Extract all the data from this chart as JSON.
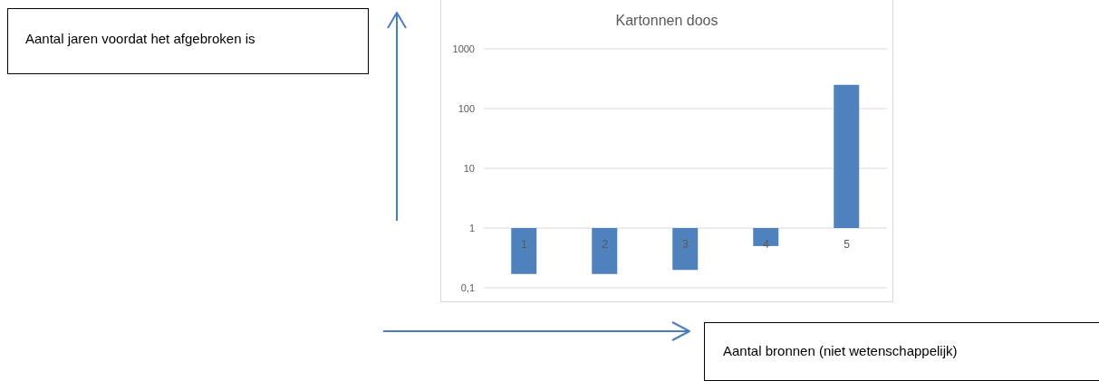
{
  "chart_data": {
    "type": "bar",
    "title": "Kartonnen doos",
    "annotations": [
      "Aantal jaren voordat het afgebroken is",
      "Aantal bronnen (niet wetenschappelijk)"
    ],
    "categories": [
      "1",
      "2",
      "3",
      "4",
      "5"
    ],
    "base": [
      1,
      1,
      1,
      1,
      1
    ],
    "values": [
      -0.83,
      -0.83,
      -0.8,
      -0.5,
      249
    ],
    "color": "#4f81bd",
    "log": true,
    "ylim": [
      0.1,
      1000
    ],
    "yticks": [
      {
        "value": 0.1,
        "label": "0,1"
      },
      1,
      10,
      100,
      1000
    ],
    "grid": "y"
  }
}
